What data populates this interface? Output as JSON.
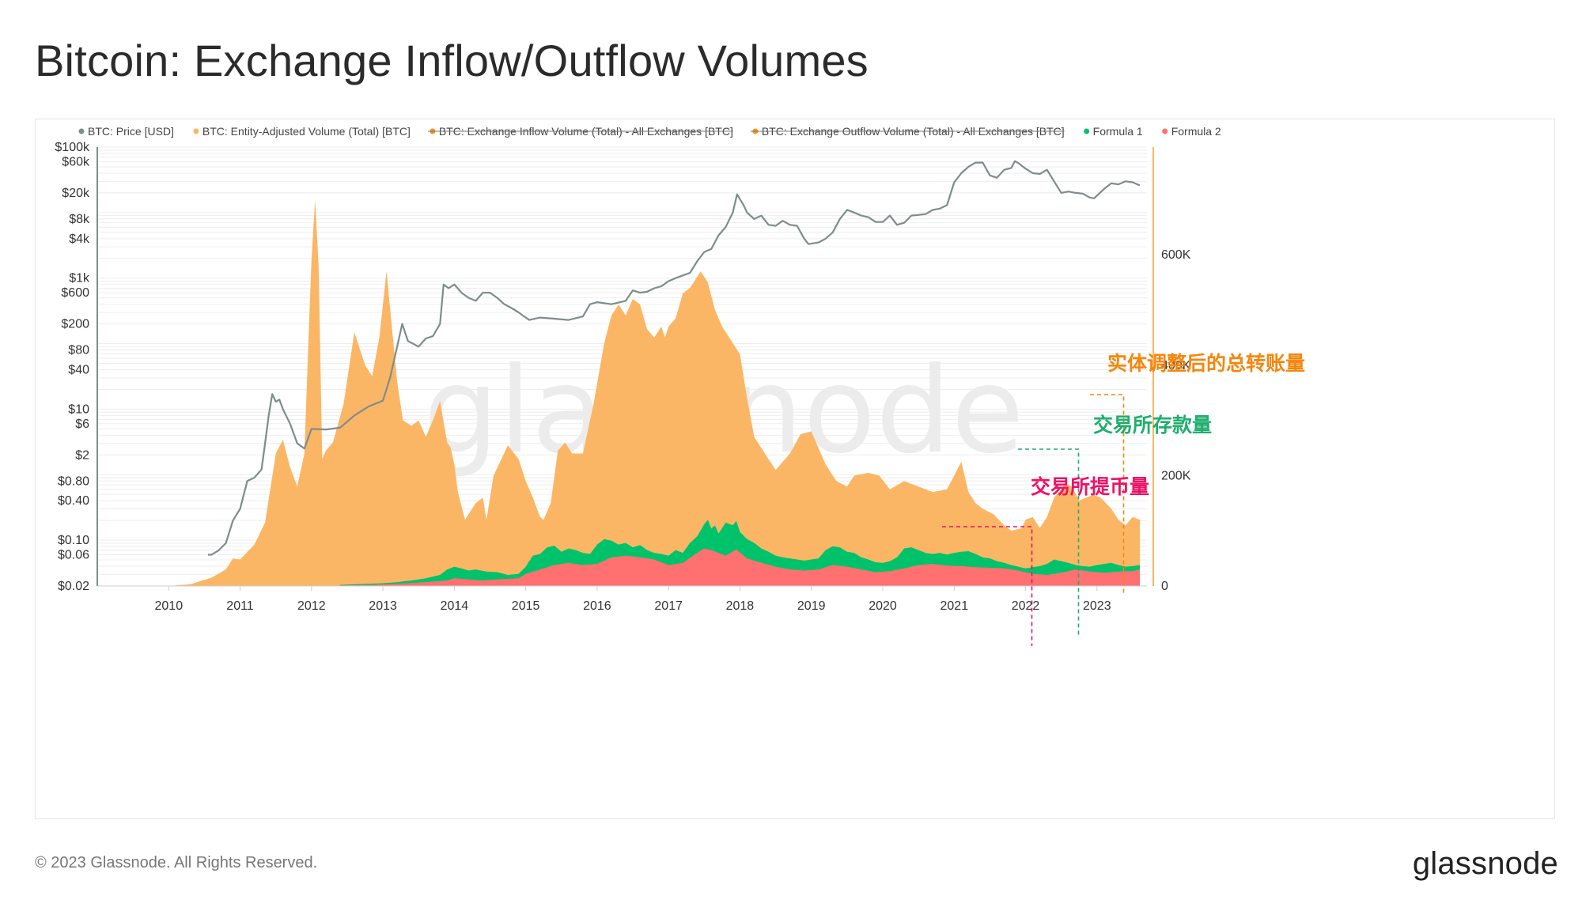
{
  "title": "Bitcoin: Exchange Inflow/Outflow Volumes",
  "footer": {
    "copyright": "© 2023 Glassnode. All Rights Reserved.",
    "brand": "glassnode"
  },
  "watermark": "glassnode",
  "colors": {
    "price": "#7f8c8d",
    "volume": "#fbb665",
    "inflow": "#f7931a",
    "outflow": "#f7931a",
    "formula1": "#00c26b",
    "formula2": "#ff7070",
    "anno_total": "#f5860e",
    "anno_deposit": "#1fae6e",
    "anno_withdraw": "#ee1166"
  },
  "legend": [
    {
      "label": "BTC: Price [USD]",
      "color": "#7f8c8d",
      "struck": false
    },
    {
      "label": "BTC: Entity-Adjusted Volume (Total) [BTC]",
      "color": "#fbb665",
      "struck": false
    },
    {
      "label": "BTC: Exchange Inflow Volume (Total) - All Exchanges [BTC]",
      "color": "#f7931a",
      "struck": true
    },
    {
      "label": "BTC: Exchange Outflow Volume (Total) - All Exchanges [BTC]",
      "color": "#f7931a",
      "struck": true
    },
    {
      "label": "Formula 1",
      "color": "#00c26b",
      "struck": false
    },
    {
      "label": "Formula 2",
      "color": "#ff7070",
      "struck": false
    }
  ],
  "annotations": [
    {
      "text": "实体调整后的总转账量",
      "color_key": "anno_total",
      "series": "volume"
    },
    {
      "text": "交易所存款量",
      "color_key": "anno_deposit",
      "series": "formula1"
    },
    {
      "text": "交易所提币量",
      "color_key": "anno_withdraw",
      "series": "formula2"
    }
  ],
  "chart_data": {
    "type": "area",
    "title": "Bitcoin: Exchange Inflow/Outflow Volumes",
    "x_axis": {
      "tick_labels": [
        "2010",
        "2011",
        "2012",
        "2013",
        "2014",
        "2015",
        "2016",
        "2017",
        "2018",
        "2019",
        "2020",
        "2021",
        "2022",
        "2023"
      ],
      "range": [
        2009.0,
        2023.7
      ]
    },
    "y_left": {
      "scale": "log",
      "tick_labels": [
        "$100k",
        "$60k",
        "$20k",
        "$8k",
        "$4k",
        "$1k",
        "$600",
        "$200",
        "$80",
        "$40",
        "$10",
        "$6",
        "$2",
        "$0.80",
        "$0.40",
        "$0.10",
        "$0.06",
        "$0.02"
      ],
      "tick_values": [
        100000,
        60000,
        20000,
        8000,
        4000,
        1000,
        600,
        200,
        80,
        40,
        10,
        6,
        2,
        0.8,
        0.4,
        0.1,
        0.06,
        0.02
      ],
      "range": [
        0.02,
        100000
      ]
    },
    "y_right": {
      "scale": "linear",
      "tick_labels": [
        "0",
        "200K",
        "400K",
        "600K"
      ],
      "tick_values": [
        0,
        200000,
        400000,
        600000
      ],
      "range": [
        0,
        795000
      ]
    },
    "grid": "horizontal",
    "legend_position": "top",
    "series": [
      {
        "name": "BTC: Price [USD]",
        "axis": "left",
        "style": "line",
        "x": [
          2010.55,
          2010.6,
          2010.7,
          2010.8,
          2010.9,
          2011.0,
          2011.1,
          2011.2,
          2011.3,
          2011.35,
          2011.4,
          2011.45,
          2011.5,
          2011.55,
          2011.6,
          2011.7,
          2011.8,
          2011.9,
          2012.0,
          2012.2,
          2012.4,
          2012.6,
          2012.8,
          2013.0,
          2013.1,
          2013.2,
          2013.27,
          2013.35,
          2013.5,
          2013.6,
          2013.7,
          2013.8,
          2013.85,
          2013.92,
          2014.0,
          2014.1,
          2014.2,
          2014.3,
          2014.4,
          2014.5,
          2014.6,
          2014.7,
          2014.8,
          2014.9,
          2015.0,
          2015.05,
          2015.2,
          2015.4,
          2015.6,
          2015.8,
          2015.9,
          2016.0,
          2016.2,
          2016.4,
          2016.5,
          2016.6,
          2016.7,
          2016.8,
          2016.9,
          2017.0,
          2017.1,
          2017.2,
          2017.3,
          2017.4,
          2017.5,
          2017.6,
          2017.7,
          2017.8,
          2017.9,
          2017.96,
          2018.05,
          2018.1,
          2018.2,
          2018.3,
          2018.4,
          2018.5,
          2018.6,
          2018.7,
          2018.8,
          2018.9,
          2018.96,
          2019.1,
          2019.2,
          2019.3,
          2019.4,
          2019.5,
          2019.6,
          2019.7,
          2019.8,
          2019.9,
          2020.0,
          2020.1,
          2020.2,
          2020.3,
          2020.4,
          2020.5,
          2020.6,
          2020.7,
          2020.8,
          2020.9,
          2021.0,
          2021.1,
          2021.2,
          2021.3,
          2021.4,
          2021.5,
          2021.6,
          2021.7,
          2021.8,
          2021.85,
          2021.9,
          2022.0,
          2022.1,
          2022.2,
          2022.3,
          2022.4,
          2022.5,
          2022.6,
          2022.7,
          2022.8,
          2022.9,
          2022.96,
          2023.1,
          2023.2,
          2023.3,
          2023.4,
          2023.5,
          2023.6
        ],
        "values": [
          0.06,
          0.06,
          0.07,
          0.09,
          0.2,
          0.3,
          0.8,
          0.9,
          1.2,
          3,
          8,
          17,
          13,
          14,
          10,
          6,
          3,
          2.5,
          5,
          4.9,
          5.2,
          8,
          11,
          13.5,
          30,
          90,
          200,
          110,
          90,
          120,
          130,
          200,
          800,
          700,
          800,
          600,
          500,
          450,
          600,
          600,
          500,
          400,
          350,
          300,
          250,
          230,
          250,
          240,
          230,
          260,
          400,
          430,
          400,
          450,
          650,
          600,
          620,
          700,
          750,
          900,
          1000,
          1100,
          1200,
          1800,
          2500,
          2800,
          4500,
          6000,
          10000,
          19000,
          13000,
          10000,
          8000,
          9000,
          6500,
          6300,
          7500,
          6500,
          6300,
          4000,
          3300,
          3500,
          4000,
          5000,
          8000,
          11000,
          10000,
          9000,
          8500,
          7200,
          7200,
          9000,
          6500,
          7000,
          9000,
          9200,
          9500,
          11000,
          11500,
          13000,
          29000,
          40000,
          50000,
          58000,
          58000,
          37000,
          34000,
          45000,
          48000,
          61000,
          57000,
          47000,
          40000,
          39000,
          45000,
          30000,
          20000,
          21000,
          20000,
          19500,
          17000,
          16500,
          23000,
          28000,
          27000,
          30000,
          29000,
          26000
        ],
        "note": "Prices read off the log axis of the chart; values between ticks are estimates."
      },
      {
        "name": "BTC: Entity-Adjusted Volume (Total) [BTC]",
        "axis": "right",
        "style": "area",
        "x": [
          2010.0,
          2010.3,
          2010.6,
          2010.8,
          2010.9,
          2011.0,
          2011.2,
          2011.35,
          2011.5,
          2011.6,
          2011.7,
          2011.8,
          2011.9,
          2011.95,
          2012.0,
          2012.05,
          2012.1,
          2012.15,
          2012.2,
          2012.3,
          2012.45,
          2012.6,
          2012.75,
          2012.85,
          2012.95,
          2013.05,
          2013.2,
          2013.28,
          2013.4,
          2013.5,
          2013.6,
          2013.7,
          2013.8,
          2013.9,
          2013.95,
          2014.0,
          2014.05,
          2014.15,
          2014.3,
          2014.4,
          2014.45,
          2014.55,
          2014.75,
          2014.9,
          2015.0,
          2015.1,
          2015.2,
          2015.25,
          2015.35,
          2015.45,
          2015.55,
          2015.65,
          2015.8,
          2015.95,
          2016.1,
          2016.2,
          2016.3,
          2016.4,
          2016.5,
          2016.6,
          2016.7,
          2016.8,
          2016.9,
          2016.95,
          2017.0,
          2017.1,
          2017.2,
          2017.3,
          2017.45,
          2017.55,
          2017.65,
          2017.75,
          2017.85,
          2018.0,
          2018.1,
          2018.2,
          2018.35,
          2018.5,
          2018.7,
          2018.85,
          2019.0,
          2019.1,
          2019.2,
          2019.35,
          2019.5,
          2019.6,
          2019.8,
          2019.95,
          2020.1,
          2020.3,
          2020.5,
          2020.7,
          2020.9,
          2021.0,
          2021.1,
          2021.2,
          2021.3,
          2021.4,
          2021.55,
          2021.7,
          2021.8,
          2021.95,
          2022.0,
          2022.1,
          2022.2,
          2022.3,
          2022.4,
          2022.5,
          2022.55,
          2022.65,
          2022.75,
          2022.85,
          2022.95,
          2023.05,
          2023.2,
          2023.3,
          2023.4,
          2023.5,
          2023.6
        ],
        "values": [
          0,
          3000,
          15000,
          30000,
          50000,
          48000,
          75000,
          115000,
          240000,
          265000,
          215000,
          180000,
          240000,
          420000,
          590000,
          700000,
          580000,
          230000,
          245000,
          260000,
          330000,
          460000,
          400000,
          380000,
          450000,
          570000,
          370000,
          300000,
          290000,
          300000,
          270000,
          300000,
          335000,
          260000,
          250000,
          220000,
          170000,
          120000,
          150000,
          160000,
          120000,
          200000,
          255000,
          230000,
          190000,
          160000,
          125000,
          120000,
          150000,
          245000,
          260000,
          240000,
          240000,
          330000,
          440000,
          490000,
          510000,
          490000,
          520000,
          510000,
          465000,
          450000,
          470000,
          450000,
          470000,
          485000,
          530000,
          540000,
          570000,
          550000,
          500000,
          470000,
          450000,
          420000,
          340000,
          270000,
          240000,
          210000,
          240000,
          275000,
          280000,
          250000,
          220000,
          190000,
          180000,
          200000,
          205000,
          200000,
          175000,
          190000,
          180000,
          170000,
          175000,
          200000,
          225000,
          170000,
          150000,
          140000,
          130000,
          110000,
          100000,
          105000,
          120000,
          125000,
          105000,
          125000,
          160000,
          175000,
          185000,
          180000,
          155000,
          160000,
          165000,
          160000,
          140000,
          120000,
          110000,
          125000,
          120000
        ],
        "note": "Volume read off the right linear axis; values are estimates."
      },
      {
        "name": "Formula 1",
        "axis": "right",
        "style": "area",
        "x": [
          2012.4,
          2012.6,
          2012.8,
          2013.0,
          2013.2,
          2013.4,
          2013.6,
          2013.8,
          2013.9,
          2014.0,
          2014.1,
          2014.2,
          2014.3,
          2014.45,
          2014.6,
          2014.75,
          2014.9,
          2015.0,
          2015.1,
          2015.2,
          2015.3,
          2015.4,
          2015.5,
          2015.6,
          2015.7,
          2015.8,
          2015.9,
          2016.0,
          2016.1,
          2016.2,
          2016.3,
          2016.4,
          2016.5,
          2016.6,
          2016.7,
          2016.8,
          2016.9,
          2017.0,
          2017.1,
          2017.2,
          2017.3,
          2017.4,
          2017.5,
          2017.55,
          2017.6,
          2017.65,
          2017.7,
          2017.8,
          2017.9,
          2017.95,
          2018.0,
          2018.1,
          2018.2,
          2018.3,
          2018.4,
          2018.5,
          2018.6,
          2018.7,
          2018.8,
          2018.9,
          2019.0,
          2019.1,
          2019.2,
          2019.3,
          2019.4,
          2019.5,
          2019.6,
          2019.7,
          2019.8,
          2019.9,
          2020.0,
          2020.1,
          2020.2,
          2020.3,
          2020.4,
          2020.5,
          2020.6,
          2020.7,
          2020.8,
          2020.9,
          2021.0,
          2021.1,
          2021.2,
          2021.3,
          2021.4,
          2021.5,
          2021.6,
          2021.7,
          2021.8,
          2021.9,
          2022.0,
          2022.1,
          2022.2,
          2022.3,
          2022.4,
          2022.5,
          2022.6,
          2022.7,
          2022.8,
          2022.9,
          2023.0,
          2023.1,
          2023.2,
          2023.3,
          2023.4,
          2023.5,
          2023.6
        ],
        "values": [
          2000,
          3000,
          4000,
          5000,
          7000,
          10000,
          14000,
          20000,
          30000,
          35000,
          32000,
          28000,
          30000,
          26000,
          25000,
          20000,
          22000,
          35000,
          55000,
          58000,
          70000,
          73000,
          62000,
          68000,
          65000,
          60000,
          58000,
          75000,
          85000,
          82000,
          75000,
          78000,
          70000,
          74000,
          65000,
          60000,
          58000,
          55000,
          65000,
          60000,
          78000,
          90000,
          112000,
          120000,
          104000,
          110000,
          95000,
          115000,
          110000,
          118000,
          98000,
          85000,
          78000,
          68000,
          62000,
          55000,
          52000,
          50000,
          48000,
          46000,
          48000,
          50000,
          65000,
          72000,
          70000,
          62000,
          60000,
          52000,
          48000,
          43000,
          42000,
          45000,
          52000,
          68000,
          70000,
          65000,
          60000,
          58000,
          60000,
          57000,
          60000,
          62000,
          63000,
          58000,
          52000,
          50000,
          45000,
          42000,
          38000,
          35000,
          32000,
          34000,
          36000,
          40000,
          48000,
          45000,
          42000,
          38000,
          36000,
          35000,
          38000,
          40000,
          42000,
          38000,
          35000,
          36000,
          38000
        ],
        "note": "Plotted as the top edge of the green band (stacked with Formula 2); estimates."
      },
      {
        "name": "Formula 2",
        "axis": "right",
        "style": "area",
        "x": [
          2012.4,
          2012.8,
          2013.2,
          2013.6,
          2013.9,
          2014.0,
          2014.2,
          2014.4,
          2014.6,
          2014.9,
          2015.0,
          2015.2,
          2015.4,
          2015.6,
          2015.8,
          2016.0,
          2016.2,
          2016.4,
          2016.6,
          2016.8,
          2017.0,
          2017.2,
          2017.4,
          2017.5,
          2017.6,
          2017.7,
          2017.8,
          2017.95,
          2018.1,
          2018.3,
          2018.5,
          2018.7,
          2018.9,
          2019.1,
          2019.3,
          2019.5,
          2019.7,
          2019.9,
          2020.1,
          2020.3,
          2020.5,
          2020.7,
          2020.9,
          2021.1,
          2021.3,
          2021.5,
          2021.7,
          2021.9,
          2022.1,
          2022.3,
          2022.5,
          2022.7,
          2022.9,
          2023.1,
          2023.3,
          2023.5,
          2023.6
        ],
        "values": [
          1000,
          2000,
          4000,
          7000,
          10000,
          14000,
          12000,
          10000,
          12000,
          14000,
          22000,
          30000,
          38000,
          42000,
          38000,
          40000,
          52000,
          55000,
          52000,
          48000,
          38000,
          42000,
          60000,
          68000,
          65000,
          60000,
          55000,
          66000,
          50000,
          42000,
          35000,
          30000,
          28000,
          30000,
          38000,
          35000,
          30000,
          25000,
          27000,
          32000,
          38000,
          40000,
          37000,
          36000,
          34000,
          33000,
          32000,
          28000,
          22000,
          20000,
          24000,
          30000,
          26000,
          24000,
          26000,
          27000,
          30000
        ],
        "note": "Red area at the bottom of the stack; estimates."
      }
    ]
  }
}
